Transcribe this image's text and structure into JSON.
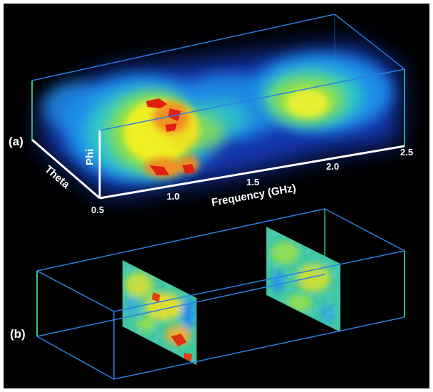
{
  "panels": [
    {
      "label": "(a)"
    },
    {
      "label": "(b)"
    }
  ],
  "axes": {
    "x_title": "Frequency (GHz)",
    "y_title": "Theta",
    "z_title": "Phi",
    "x_ticks": [
      "0.5",
      "1.0",
      "1.5",
      "2.0",
      "2.5"
    ]
  },
  "colors": {
    "background": "#000000",
    "box_edge_blue": "#2d7fe0",
    "box_edge_green": "#33c27a",
    "axis_white": "#ffffff",
    "colormap": [
      "#1a2bd0",
      "#1e8ee8",
      "#30c8c8",
      "#8fe04a",
      "#f0f020",
      "#f09020",
      "#e02010"
    ]
  }
}
